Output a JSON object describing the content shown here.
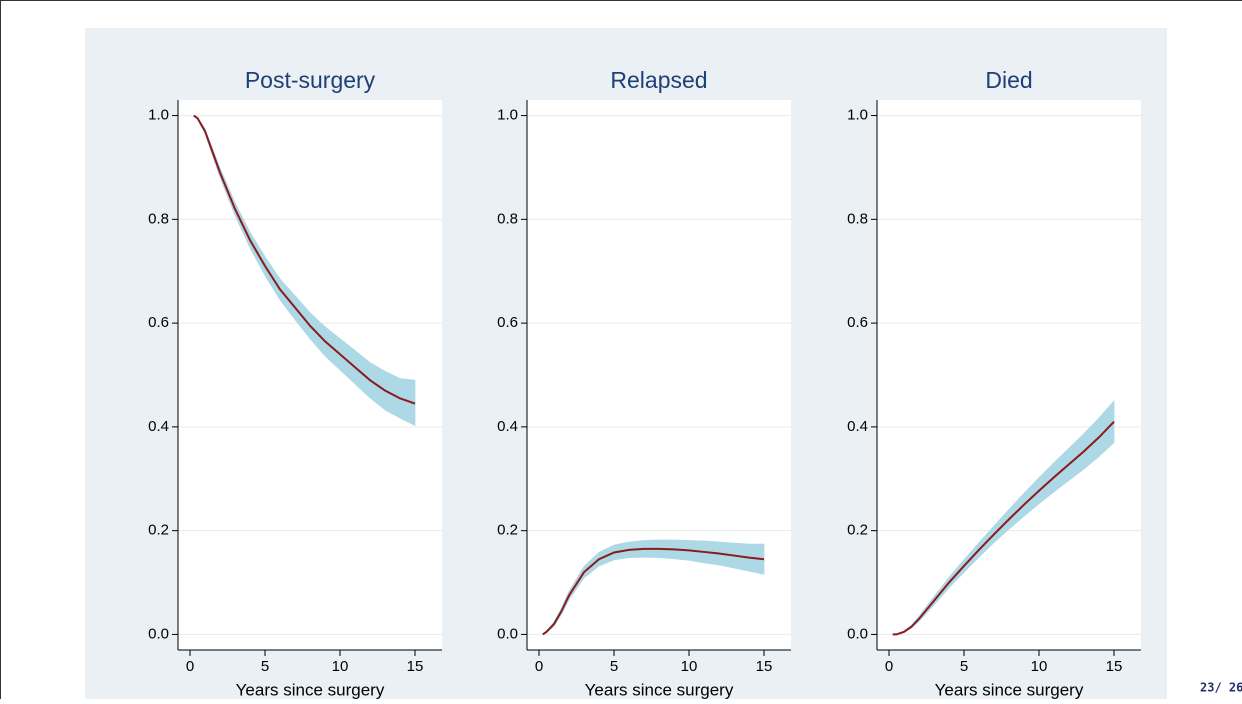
{
  "chart_data": [
    {
      "type": "line",
      "title": "Post-surgery",
      "xlabel": "Years since surgery",
      "x": [
        0.25,
        0.5,
        1,
        1.5,
        2,
        3,
        4,
        5,
        6,
        7,
        8,
        9,
        10,
        11,
        12,
        13,
        14,
        15
      ],
      "values": [
        1.0,
        0.995,
        0.97,
        0.93,
        0.89,
        0.82,
        0.76,
        0.71,
        0.665,
        0.63,
        0.595,
        0.565,
        0.54,
        0.515,
        0.49,
        0.47,
        0.455,
        0.445
      ],
      "lower": [
        1.0,
        0.993,
        0.966,
        0.923,
        0.881,
        0.808,
        0.745,
        0.692,
        0.645,
        0.607,
        0.57,
        0.537,
        0.51,
        0.483,
        0.456,
        0.433,
        0.417,
        0.403
      ],
      "upper": [
        1.0,
        0.997,
        0.974,
        0.937,
        0.899,
        0.832,
        0.775,
        0.728,
        0.685,
        0.653,
        0.62,
        0.593,
        0.57,
        0.547,
        0.524,
        0.507,
        0.493,
        0.49
      ],
      "color": "#8b1a1a",
      "band_color": "#add8e6",
      "xlim": [
        -0.8,
        16.8
      ],
      "ylim": [
        -0.03,
        1.03
      ],
      "xticks": [
        0,
        5,
        10,
        15
      ],
      "yticks": [
        {
          "value": 0,
          "label": "0.0"
        },
        0.2,
        0.4,
        0.6,
        0.8,
        {
          "value": 1,
          "label": "1.0"
        }
      ],
      "grid": true
    },
    {
      "type": "line",
      "title": "Relapsed",
      "xlabel": "Years since surgery",
      "x": [
        0.25,
        0.5,
        1,
        1.5,
        2,
        3,
        4,
        5,
        6,
        7,
        8,
        9,
        10,
        11,
        12,
        13,
        14,
        15
      ],
      "values": [
        0,
        0.005,
        0.02,
        0.045,
        0.075,
        0.12,
        0.145,
        0.158,
        0.163,
        0.165,
        0.165,
        0.164,
        0.162,
        0.159,
        0.156,
        0.152,
        0.148,
        0.145
      ],
      "lower": [
        0,
        0.004,
        0.016,
        0.039,
        0.067,
        0.109,
        0.132,
        0.144,
        0.148,
        0.149,
        0.148,
        0.146,
        0.143,
        0.138,
        0.134,
        0.128,
        0.122,
        0.116
      ],
      "upper": [
        0,
        0.006,
        0.024,
        0.051,
        0.083,
        0.131,
        0.158,
        0.172,
        0.178,
        0.181,
        0.182,
        0.182,
        0.181,
        0.18,
        0.178,
        0.176,
        0.174,
        0.174
      ],
      "color": "#8b1a1a",
      "band_color": "#add8e6",
      "xlim": [
        -0.8,
        16.8
      ],
      "ylim": [
        -0.03,
        1.03
      ],
      "xticks": [
        0,
        5,
        10,
        15
      ],
      "yticks": [
        {
          "value": 0,
          "label": "0.0"
        },
        0.2,
        0.4,
        0.6,
        0.8,
        {
          "value": 1,
          "label": "1.0"
        }
      ],
      "grid": true
    },
    {
      "type": "line",
      "title": "Died",
      "xlabel": "Years since surgery",
      "x": [
        0.25,
        0.5,
        1,
        1.5,
        2,
        3,
        4,
        5,
        6,
        7,
        8,
        9,
        10,
        11,
        12,
        13,
        14,
        15
      ],
      "values": [
        0,
        0,
        0.005,
        0.015,
        0.03,
        0.065,
        0.1,
        0.132,
        0.163,
        0.193,
        0.222,
        0.25,
        0.277,
        0.303,
        0.328,
        0.353,
        0.38,
        0.41
      ],
      "lower": [
        0,
        0,
        0.004,
        0.012,
        0.025,
        0.057,
        0.09,
        0.12,
        0.149,
        0.177,
        0.203,
        0.228,
        0.252,
        0.275,
        0.297,
        0.319,
        0.343,
        0.37
      ],
      "upper": [
        0,
        0,
        0.006,
        0.018,
        0.035,
        0.073,
        0.11,
        0.144,
        0.177,
        0.209,
        0.241,
        0.272,
        0.302,
        0.331,
        0.359,
        0.387,
        0.417,
        0.45
      ],
      "color": "#8b1a1a",
      "band_color": "#add8e6",
      "xlim": [
        -0.8,
        16.8
      ],
      "ylim": [
        -0.03,
        1.03
      ],
      "xticks": [
        0,
        5,
        10,
        15
      ],
      "yticks": [
        {
          "value": 0,
          "label": "0.0"
        },
        0.2,
        0.4,
        0.6,
        0.8,
        {
          "value": 1,
          "label": "1.0"
        }
      ],
      "grid": true
    }
  ],
  "footer": {
    "page": "23/ 26"
  }
}
